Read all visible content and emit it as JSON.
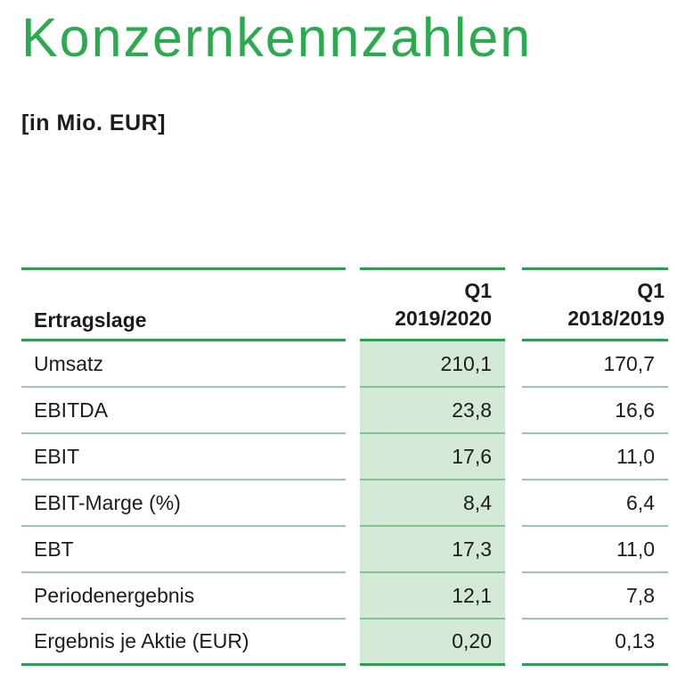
{
  "page": {
    "title": "Konzernkennzahlen",
    "subtitle": "[in Mio. EUR]"
  },
  "colors": {
    "accent_green": "#2BAA50",
    "line_strong": "#2E9C53",
    "line_thin": "rgba(46,156,83,0.5)",
    "shade_bg": "#D4E8D7",
    "text_color": "#1C1C1A"
  },
  "table": {
    "header": {
      "col1": "Ertragslage",
      "col2_line1": "Q1",
      "col2_line2": "2019/2020",
      "col3_line1": "Q1",
      "col3_line2": "2018/2019"
    },
    "rows": [
      {
        "label": "Umsatz",
        "q1_2019_2020": "210,1",
        "q1_2018_2019": "170,7"
      },
      {
        "label": "EBITDA",
        "q1_2019_2020": "23,8",
        "q1_2018_2019": "16,6"
      },
      {
        "label": "EBIT",
        "q1_2019_2020": "17,6",
        "q1_2018_2019": "11,0"
      },
      {
        "label": "EBIT-Marge (%)",
        "q1_2019_2020": "8,4",
        "q1_2018_2019": "6,4"
      },
      {
        "label": "EBT",
        "q1_2019_2020": "17,3",
        "q1_2018_2019": "11,0"
      },
      {
        "label": "Periodenergebnis",
        "q1_2019_2020": "12,1",
        "q1_2018_2019": "7,8"
      },
      {
        "label": "Ergebnis je Aktie (EUR)",
        "q1_2019_2020": "0,20",
        "q1_2018_2019": "0,13"
      }
    ]
  }
}
